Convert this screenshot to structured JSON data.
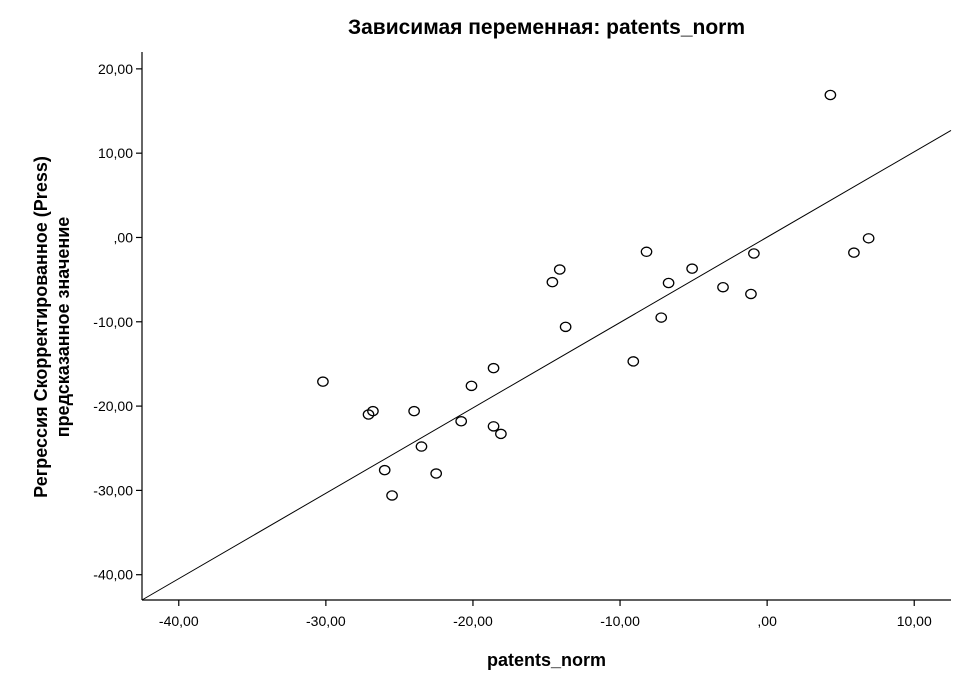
{
  "chart_data": {
    "type": "scatter",
    "title": "Зависимая переменная: patents_norm",
    "xlabel": "patents_norm",
    "ylabel_lines": [
      "Регрессия Скорректированное (Press)",
      "предсказанное значение"
    ],
    "xlim": [
      -42.5,
      12.5
    ],
    "ylim": [
      -43,
      22
    ],
    "x_ticks": [
      {
        "value": -40,
        "label": "-40,00"
      },
      {
        "value": -30,
        "label": "-30,00"
      },
      {
        "value": -20,
        "label": "-20,00"
      },
      {
        "value": -10,
        "label": "-10,00"
      },
      {
        "value": 0,
        "label": ",00"
      },
      {
        "value": 10,
        "label": "10,00"
      }
    ],
    "y_ticks": [
      {
        "value": 20,
        "label": "20,00"
      },
      {
        "value": 10,
        "label": "10,00"
      },
      {
        "value": 0,
        "label": ",00"
      },
      {
        "value": -10,
        "label": "-10,00"
      },
      {
        "value": -20,
        "label": "-20,00"
      },
      {
        "value": -30,
        "label": "-30,00"
      },
      {
        "value": -40,
        "label": "-40,00"
      }
    ],
    "points": [
      {
        "x": -30.2,
        "y": -17.1
      },
      {
        "x": -27.1,
        "y": -21.0
      },
      {
        "x": -26.8,
        "y": -20.6
      },
      {
        "x": -26.0,
        "y": -27.6
      },
      {
        "x": -25.5,
        "y": -30.6
      },
      {
        "x": -24.0,
        "y": -20.6
      },
      {
        "x": -23.5,
        "y": -24.8
      },
      {
        "x": -22.5,
        "y": -28.0
      },
      {
        "x": -20.8,
        "y": -21.8
      },
      {
        "x": -20.1,
        "y": -17.6
      },
      {
        "x": -18.6,
        "y": -15.5
      },
      {
        "x": -18.6,
        "y": -22.4
      },
      {
        "x": -18.1,
        "y": -23.3
      },
      {
        "x": -14.6,
        "y": -5.3
      },
      {
        "x": -14.1,
        "y": -3.8
      },
      {
        "x": -13.7,
        "y": -10.6
      },
      {
        "x": -9.1,
        "y": -14.7
      },
      {
        "x": -8.2,
        "y": -1.7
      },
      {
        "x": -7.2,
        "y": -9.5
      },
      {
        "x": -6.7,
        "y": -5.4
      },
      {
        "x": -5.1,
        "y": -3.7
      },
      {
        "x": -3.0,
        "y": -5.9
      },
      {
        "x": -1.1,
        "y": -6.7
      },
      {
        "x": -0.9,
        "y": -1.9
      },
      {
        "x": 4.3,
        "y": 16.9
      },
      {
        "x": 5.9,
        "y": -1.8
      },
      {
        "x": 6.9,
        "y": -0.1
      }
    ],
    "fit_line": [
      {
        "x": -42.5,
        "y": -43.0
      },
      {
        "x": 12.5,
        "y": 12.7
      }
    ],
    "grid": false,
    "legend": "none"
  }
}
